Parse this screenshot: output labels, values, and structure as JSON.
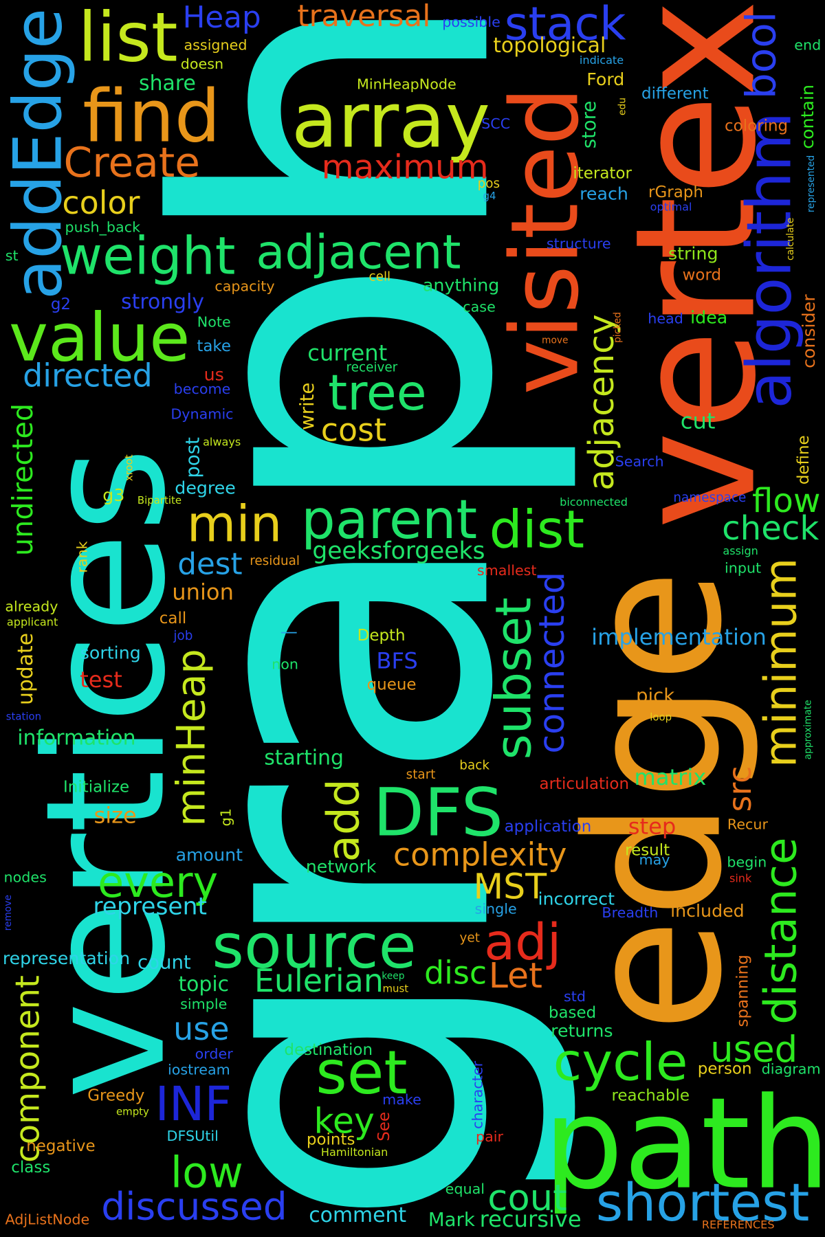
{
  "words": {
    "graph": "graph",
    "vertices": "vertices",
    "edge": "edge",
    "vertex": "vertex",
    "visited": "visited",
    "path": "path",
    "algorithm": "algorithm",
    "addEdge": "addEdge",
    "list": "list",
    "find": "find",
    "array": "array",
    "stack": "stack",
    "Heap": "Heap",
    "traversal": "traversal",
    "bool": "bool",
    "Create": "Create",
    "maximum": "maximum",
    "weight": "weight",
    "adjacent": "adjacent",
    "value": "value",
    "color": "color",
    "tree": "tree",
    "cost": "cost",
    "directed": "directed",
    "undirected": "undirected",
    "min": "min",
    "parent": "parent",
    "dist": "dist",
    "flow": "flow",
    "check": "check",
    "adjacency": "adjacency",
    "dest": "dest",
    "union": "union",
    "subset": "subset",
    "connected": "connected",
    "minimum": "minimum",
    "distance": "distance",
    "minHeap": "minHeap",
    "implementation": "implementation",
    "DFS": "DFS",
    "add": "add",
    "complexity": "complexity",
    "src": "src",
    "matrix": "matrix",
    "every": "every",
    "MST": "MST",
    "source": "source",
    "adj": "adj",
    "Let": "Let",
    "disc": "disc",
    "Eulerian": "Eulerian",
    "represent": "represent",
    "representation": "representation",
    "component": "component",
    "cycle": "cycle",
    "used": "used",
    "set": "set",
    "INF": "INF",
    "key": "key",
    "low": "low",
    "shortest": "shortest",
    "discussed": "discussed",
    "cout": "cout",
    "use": "use",
    "recursive": "recursive",
    "geeksforgeeks": "geeksforgeeks",
    "current": "current",
    "write": "write",
    "post": "post",
    "cut": "cut",
    "step": "step",
    "pick": "pick",
    "topological": "topological",
    "share": "share",
    "store": "store",
    "strongly": "strongly",
    "string": "string",
    "idea": "idea",
    "reach": "reach",
    "iterator": "iterator",
    "Ford": "Ford",
    "different": "different",
    "coloring": "coloring",
    "contain": "contain",
    "consider": "consider",
    "define": "define",
    "spanning": "spanning",
    "included": "included",
    "incorrect": "incorrect",
    "BFS": "BFS",
    "Depth": "Depth",
    "queue": "queue",
    "sorting": "sorting",
    "test": "test",
    "update": "update",
    "information": "information",
    "starting": "starting",
    "Initialize": "Initialize",
    "size": "size",
    "amount": "amount",
    "network": "network",
    "count": "count",
    "topic": "topic",
    "returns": "returns",
    "based": "based",
    "Mark": "Mark",
    "comment": "comment",
    "articulation": "articulation",
    "application": "application",
    "Recur": "Recur",
    "begin": "begin",
    "result": "result",
    "may": "may",
    "Breadth": "Breadth",
    "single": "single",
    "destination": "destination",
    "order": "order",
    "iostream": "iostream",
    "Greedy": "Greedy",
    "person": "person",
    "diagram": "diagram",
    "reachable": "reachable",
    "character": "character",
    "make": "make",
    "See": "See",
    "points": "points",
    "pair": "pair",
    "negative": "negative",
    "class": "class",
    "DFSUtil": "DFSUtil",
    "Hamiltonian": "Hamiltonian",
    "equal": "equal",
    "AdjListNode": "AdjListNode",
    "REFERENCES": "REFERENCES",
    "nodes": "nodes",
    "remove": "remove",
    "station": "station",
    "applicant": "applicant",
    "already": "already",
    "rank": "rank",
    "degree": "degree",
    "g3": "g3",
    "g1": "g1",
    "g2": "g2",
    "g4": "g4",
    "st": "st",
    "Bipartite": "Bipartite",
    "xroot": "xroot",
    "always": "always",
    "Dynamic": "Dynamic",
    "become": "become",
    "take": "take",
    "us": "us",
    "Note": "Note",
    "capacity": "capacity",
    "push_back": "push_back",
    "assigned": "assigned",
    "doesn": "doesn",
    "MinHeapNode": "MinHeapNode",
    "SCC": "SCC",
    "possible": "possible",
    "indicate": "indicate",
    "end": "end",
    "edu": "edu",
    "pos": "pos",
    "rGraph": "rGraph",
    "optimal": "optimal",
    "represented": "represented",
    "calculate": "calculate",
    "structure": "structure",
    "cell": "cell",
    "word": "word",
    "anything": "anything",
    "case": "case",
    "head": "head",
    "picked": "picked",
    "move": "move",
    "receiver": "receiver",
    "Search": "Search",
    "biconnected": "biconnected",
    "namespace": "namespace",
    "assign": "assign",
    "input": "input",
    "smallest": "smallest",
    "residual": "residual",
    "call": "call",
    "job": "job",
    "non": "non",
    "start": "start",
    "back": "back",
    "loop": "loop",
    "approximate": "approximate",
    "sink": "sink",
    "yet": "yet",
    "keep": "keep",
    "must": "must",
    "simple": "simple",
    "empty": "empty",
    "std": "std",
    "dash": "—"
  }
}
